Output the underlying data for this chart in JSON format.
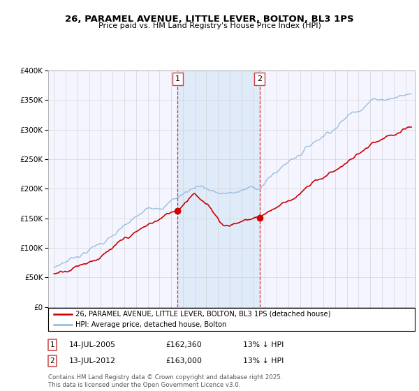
{
  "title": "26, PARAMEL AVENUE, LITTLE LEVER, BOLTON, BL3 1PS",
  "subtitle": "Price paid vs. HM Land Registry's House Price Index (HPI)",
  "legend_line1": "26, PARAMEL AVENUE, LITTLE LEVER, BOLTON, BL3 1PS (detached house)",
  "legend_line2": "HPI: Average price, detached house, Bolton",
  "annotation1_date": "14-JUL-2005",
  "annotation1_price": "£162,360",
  "annotation1_hpi": "13% ↓ HPI",
  "annotation1_year": 2005.54,
  "annotation1_value": 162360,
  "annotation2_date": "13-JUL-2012",
  "annotation2_price": "£163,000",
  "annotation2_hpi": "13% ↓ HPI",
  "annotation2_year": 2012.54,
  "annotation2_value": 163000,
  "footer": "Contains HM Land Registry data © Crown copyright and database right 2025.\nThis data is licensed under the Open Government Licence v3.0.",
  "hpi_color": "#90b8d8",
  "price_color": "#cc0000",
  "background_color": "#ffffff",
  "plot_bg_color": "#f5f5ff",
  "shade_color": "#d8e8f8",
  "ylim": [
    0,
    400000
  ],
  "xlim_start": 1994.5,
  "xlim_end": 2025.8
}
